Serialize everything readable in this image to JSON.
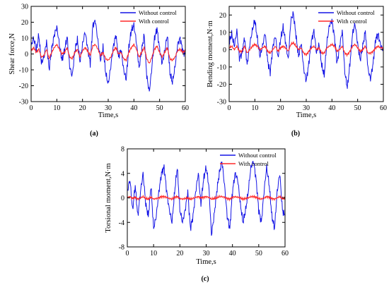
{
  "colors": {
    "without_control": "#1414e6",
    "with_control": "#ff2a2a"
  },
  "chart_data": [
    {
      "type": "line",
      "panel_label": "(a)",
      "xlabel": "Time,s",
      "ylabel": "Shear force,N",
      "xlim": [
        0,
        60
      ],
      "ylim": [
        -30,
        30
      ],
      "xticks": [
        "0",
        "10",
        "20",
        "30",
        "40",
        "50",
        "60"
      ],
      "yticks": [
        "-30",
        "-20",
        "-10",
        "0",
        "10",
        "20",
        "30"
      ],
      "legend": {
        "placement": "top-right",
        "entries": [
          "Without control",
          "With control"
        ]
      },
      "series": [
        {
          "name": "Without control",
          "x": [
            0,
            1,
            2,
            3,
            4,
            5,
            6,
            7,
            8,
            9,
            10,
            11,
            12,
            13,
            14,
            15,
            16,
            17,
            18,
            19,
            20,
            21,
            22,
            23,
            24,
            25,
            26,
            27,
            28,
            29,
            30,
            31,
            32,
            33,
            34,
            35,
            36,
            37,
            38,
            39,
            40,
            41,
            42,
            43,
            44,
            45,
            46,
            47,
            48,
            49,
            50,
            51,
            52,
            53,
            54,
            55,
            56,
            57,
            58,
            59,
            60
          ],
          "y": [
            5,
            10,
            2,
            12,
            -6,
            -2,
            8,
            -10,
            3,
            12,
            17,
            6,
            -4,
            2,
            11,
            -8,
            -14,
            2,
            9,
            -5,
            6,
            14,
            4,
            -6,
            18,
            21,
            8,
            -4,
            4,
            -12,
            -19,
            -8,
            5,
            12,
            -2,
            3,
            -10,
            -16,
            4,
            15,
            18,
            7,
            -9,
            2,
            12,
            -14,
            -24,
            -8,
            10,
            16,
            3,
            -6,
            2,
            12,
            -12,
            -18,
            -8,
            6,
            10,
            2,
            0
          ]
        },
        {
          "name": "With control",
          "x": [
            0,
            1,
            2,
            3,
            4,
            5,
            6,
            7,
            8,
            9,
            10,
            11,
            12,
            13,
            14,
            15,
            16,
            17,
            18,
            19,
            20,
            21,
            22,
            23,
            24,
            25,
            26,
            27,
            28,
            29,
            30,
            31,
            32,
            33,
            34,
            35,
            36,
            37,
            38,
            39,
            40,
            41,
            42,
            43,
            44,
            45,
            46,
            47,
            48,
            49,
            50,
            51,
            52,
            53,
            54,
            55,
            56,
            57,
            58,
            59,
            60
          ],
          "y": [
            2,
            4,
            1,
            3,
            -2,
            -1,
            3,
            -3,
            1,
            4,
            6,
            3,
            0,
            1,
            4,
            -2,
            -3,
            1,
            3,
            -2,
            2,
            4,
            2,
            -1,
            5,
            6,
            3,
            -1,
            1,
            -3,
            -4,
            -2,
            2,
            4,
            0,
            1,
            -3,
            -4,
            1,
            4,
            6,
            3,
            -2,
            1,
            4,
            -3,
            -6,
            -2,
            3,
            5,
            1,
            -2,
            1,
            4,
            -3,
            -4,
            -2,
            2,
            3,
            1,
            2
          ]
        }
      ]
    },
    {
      "type": "line",
      "panel_label": "(b)",
      "xlabel": "Time,s",
      "ylabel": "Bending moment,N·m",
      "xlim": [
        0,
        60
      ],
      "ylim": [
        -30,
        25
      ],
      "xticks": [
        "0",
        "10",
        "20",
        "30",
        "40",
        "50",
        "60"
      ],
      "yticks": [
        "-30",
        "-20",
        "-10",
        "0",
        "10",
        "20"
      ],
      "legend": {
        "placement": "top-right",
        "entries": [
          "Without control",
          "With control"
        ]
      },
      "series": [
        {
          "name": "Without control",
          "x": [
            0,
            1,
            2,
            3,
            4,
            5,
            6,
            7,
            8,
            9,
            10,
            11,
            12,
            13,
            14,
            15,
            16,
            17,
            18,
            19,
            20,
            21,
            22,
            23,
            24,
            25,
            26,
            27,
            28,
            29,
            30,
            31,
            32,
            33,
            34,
            35,
            36,
            37,
            38,
            39,
            40,
            41,
            42,
            43,
            44,
            45,
            46,
            47,
            48,
            49,
            50,
            51,
            52,
            53,
            54,
            55,
            56,
            57,
            58,
            59,
            60
          ],
          "y": [
            4,
            9,
            2,
            11,
            -5,
            -2,
            7,
            -9,
            3,
            11,
            17,
            6,
            -4,
            2,
            10,
            -7,
            -13,
            2,
            8,
            -5,
            6,
            13,
            4,
            -6,
            17,
            21,
            8,
            -4,
            4,
            -11,
            -18,
            -8,
            5,
            11,
            -2,
            3,
            -9,
            -15,
            4,
            14,
            17,
            7,
            -8,
            2,
            11,
            -13,
            -22,
            -8,
            9,
            15,
            3,
            -6,
            2,
            11,
            -11,
            -17,
            -8,
            6,
            9,
            2,
            0
          ]
        },
        {
          "name": "With control",
          "x": [
            0,
            1,
            2,
            3,
            4,
            5,
            6,
            7,
            8,
            9,
            10,
            11,
            12,
            13,
            14,
            15,
            16,
            17,
            18,
            19,
            20,
            21,
            22,
            23,
            24,
            25,
            26,
            27,
            28,
            29,
            30,
            31,
            32,
            33,
            34,
            35,
            36,
            37,
            38,
            39,
            40,
            41,
            42,
            43,
            44,
            45,
            46,
            47,
            48,
            49,
            50,
            51,
            52,
            53,
            54,
            55,
            56,
            57,
            58,
            59,
            60
          ],
          "y": [
            1,
            2,
            0,
            2,
            -1,
            -1,
            2,
            -2,
            0,
            2,
            3,
            2,
            0,
            1,
            2,
            -1,
            -2,
            0,
            2,
            -1,
            1,
            2,
            1,
            -1,
            3,
            4,
            2,
            0,
            1,
            -2,
            -3,
            -1,
            1,
            2,
            0,
            1,
            -2,
            -2,
            1,
            2,
            3,
            2,
            -1,
            0,
            2,
            -2,
            -3,
            -1,
            2,
            3,
            1,
            -1,
            0,
            2,
            -2,
            -2,
            -1,
            1,
            2,
            1,
            1
          ]
        }
      ]
    },
    {
      "type": "line",
      "panel_label": "(c)",
      "xlabel": "Time,s",
      "ylabel": "Torsional moment,N·m",
      "xlim": [
        0,
        60
      ],
      "ylim": [
        -8,
        8
      ],
      "xticks": [
        "0",
        "10",
        "20",
        "30",
        "40",
        "50",
        "60"
      ],
      "yticks": [
        "-8",
        "-4",
        "0",
        "4",
        "8"
      ],
      "legend": {
        "placement": "top-right",
        "entries": [
          "Without control",
          "With control"
        ]
      },
      "series": [
        {
          "name": "Without control",
          "x": [
            0,
            1,
            2,
            3,
            4,
            5,
            6,
            7,
            8,
            9,
            10,
            11,
            12,
            13,
            14,
            15,
            16,
            17,
            18,
            19,
            20,
            21,
            22,
            23,
            24,
            25,
            26,
            27,
            28,
            29,
            30,
            31,
            32,
            33,
            34,
            35,
            36,
            37,
            38,
            39,
            40,
            41,
            42,
            43,
            44,
            45,
            46,
            47,
            48,
            49,
            50,
            51,
            52,
            53,
            54,
            55,
            56,
            57,
            58,
            59,
            60
          ],
          "y": [
            1,
            3,
            -2,
            2,
            -3,
            1,
            4,
            -1,
            -3,
            2,
            -5,
            -3,
            1,
            4,
            5,
            1,
            -2,
            -4,
            1,
            5,
            -2,
            -4,
            -2,
            1,
            -5,
            -3,
            1,
            4,
            -1,
            3,
            5,
            2,
            -6,
            -3,
            1,
            4,
            6,
            2,
            -3,
            -5,
            1,
            4,
            3,
            -1,
            -4,
            -2,
            1,
            5,
            6,
            3,
            -2,
            -4,
            1,
            5,
            2,
            -3,
            -5,
            1,
            4,
            -2,
            -3
          ]
        },
        {
          "name": "With control",
          "x": [
            0,
            1,
            2,
            3,
            4,
            5,
            6,
            7,
            8,
            9,
            10,
            11,
            12,
            13,
            14,
            15,
            16,
            17,
            18,
            19,
            20,
            21,
            22,
            23,
            24,
            25,
            26,
            27,
            28,
            29,
            30,
            31,
            32,
            33,
            34,
            35,
            36,
            37,
            38,
            39,
            40,
            41,
            42,
            43,
            44,
            45,
            46,
            47,
            48,
            49,
            50,
            51,
            52,
            53,
            54,
            55,
            56,
            57,
            58,
            59,
            60
          ],
          "y": [
            0.1,
            0.2,
            -0.1,
            0.1,
            -0.2,
            0,
            0.2,
            -0.1,
            -0.2,
            0.1,
            -0.2,
            -0.1,
            0,
            0.2,
            0.2,
            0.1,
            -0.1,
            -0.2,
            0.1,
            0.2,
            -0.1,
            -0.2,
            -0.1,
            0,
            -0.2,
            -0.1,
            0.1,
            0.2,
            0,
            0.1,
            0.2,
            0.1,
            -0.2,
            -0.1,
            0,
            0.2,
            0.2,
            0.1,
            -0.1,
            -0.2,
            0.1,
            0.2,
            0.1,
            0,
            -0.2,
            -0.1,
            0,
            0.2,
            0.2,
            0.1,
            -0.1,
            -0.2,
            0,
            0.2,
            0.1,
            -0.1,
            -0.2,
            0,
            0.2,
            -0.1,
            -0.1
          ]
        }
      ]
    }
  ]
}
